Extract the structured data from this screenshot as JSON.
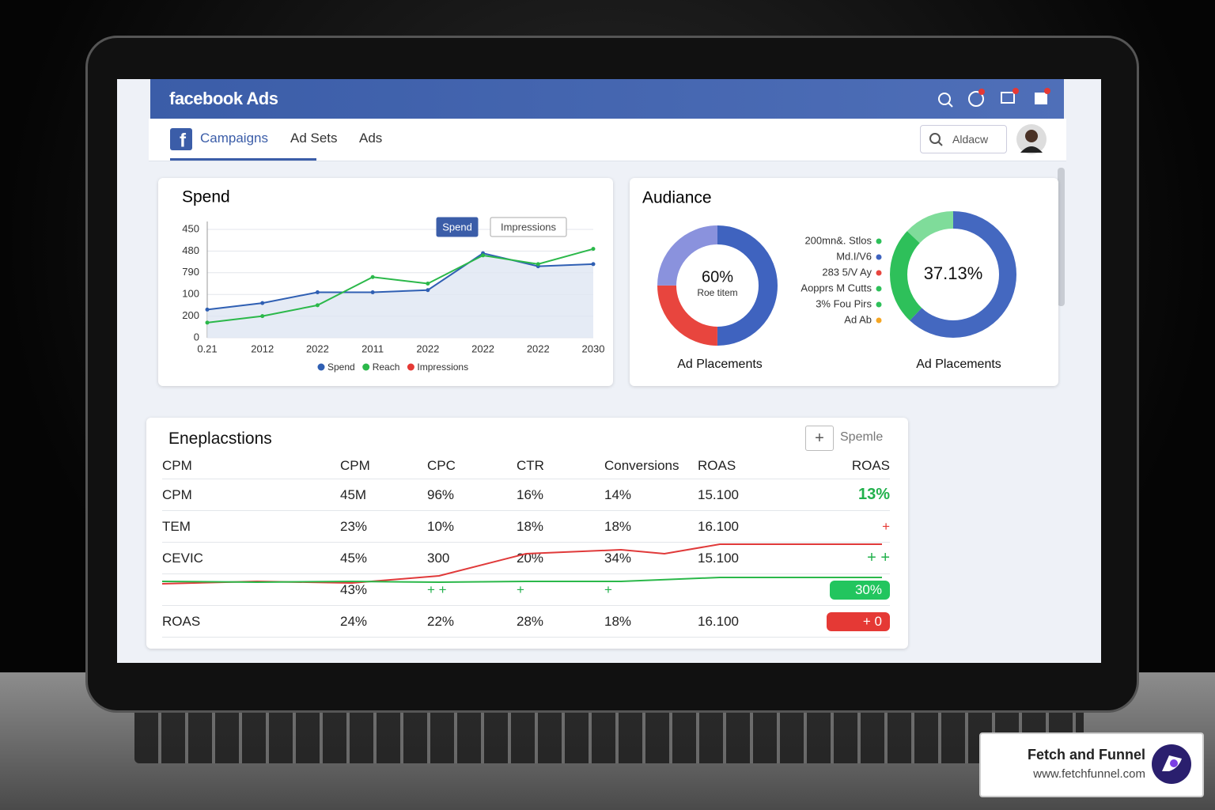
{
  "header": {
    "brand": "facebook Ads"
  },
  "nav": {
    "tabs": [
      "Campaigns",
      "Ad Sets",
      "Ads"
    ],
    "search": "Aldacw"
  },
  "chart_data": {
    "type": "line",
    "title": "Spend",
    "toggles": [
      "Spend",
      "Impressions"
    ],
    "categories": [
      "0.21",
      "2012",
      "2022",
      "2011",
      "2022",
      "2022",
      "2022",
      "2030"
    ],
    "ylim": [
      0,
      5
    ],
    "yticks": [
      0,
      {
        "value": 1,
        "label": "200"
      },
      {
        "value": 2,
        "label": "100"
      },
      {
        "value": 3,
        "label": "790"
      },
      {
        "value": 4,
        "label": "480"
      },
      {
        "value": 5,
        "label": "450"
      }
    ],
    "grid": true,
    "series": [
      {
        "name": "Spend",
        "color": "#2f5fb3",
        "values": [
          1.3,
          1.6,
          2.1,
          2.1,
          2.2,
          3.9,
          3.3,
          3.4
        ]
      },
      {
        "name": "Reach",
        "color": "#2bb84a",
        "values": [
          0.7,
          1.0,
          1.5,
          2.8,
          2.5,
          3.8,
          3.4,
          4.1
        ]
      },
      {
        "name": "Impressions",
        "color": "#e53935",
        "values": [
          null,
          null,
          null,
          null,
          null,
          null,
          null,
          null
        ]
      }
    ]
  },
  "audience": {
    "title": "Audiance",
    "donuts": [
      {
        "type": "pie",
        "center_value": "60%",
        "center_label": "Roe titem",
        "caption": "Ad Placements",
        "values": [
          50,
          25,
          25
        ],
        "colors": [
          "#3f63bf",
          "#e8453e",
          "#8a92dd"
        ]
      },
      {
        "type": "pie",
        "center_value": "37.13%",
        "caption": "Ad Placements",
        "values": [
          62,
          25,
          13
        ],
        "colors": [
          "#4468c0",
          "#2ec05a",
          "#7fdc9a"
        ]
      }
    ],
    "legend": [
      {
        "label": "200mn&. Stlos",
        "color": "#2ec05a"
      },
      {
        "label": "Md.I/V6",
        "color": "#3f63bf"
      },
      {
        "label": "283 5/V Ay",
        "color": "#e8453e"
      },
      {
        "label": "Aopprs M Cutts",
        "color": "#2ec05a"
      },
      {
        "label": "3% Fou Pirs",
        "color": "#2ec05a"
      },
      {
        "label": "Ad Ab",
        "color": "#f5a623"
      }
    ]
  },
  "table": {
    "title": "Eneplacstions",
    "button": "Spemle",
    "headers": [
      "CPM",
      "CPM",
      "CPC",
      "CTR",
      "Conversions",
      "ROAS",
      "ROAS"
    ],
    "rows": [
      [
        "CPM",
        "45M",
        "96%",
        "16%",
        "14%",
        "15.100",
        "13%"
      ],
      [
        "TEM",
        "23%",
        "10%",
        "18%",
        "18%",
        "16.100",
        "+"
      ],
      [
        "CEVIC",
        "45%",
        "300",
        "20%",
        "34%",
        "15.100",
        "+ +"
      ],
      [
        "",
        "43%",
        "+ +",
        "+",
        "+",
        "",
        "30%"
      ],
      [
        "ROAS",
        "24%",
        "22%",
        "28%",
        "18%",
        "16.100",
        "+ 0"
      ]
    ]
  },
  "branding": {
    "name": "Fetch and Funnel",
    "url": "www.fetchfunnel.com"
  }
}
